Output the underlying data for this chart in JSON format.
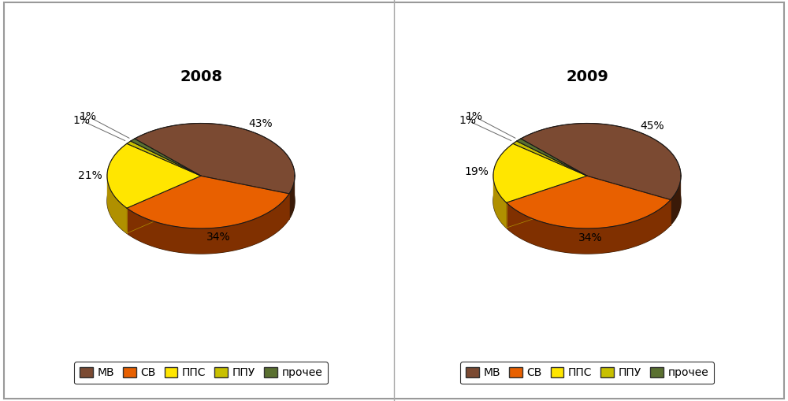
{
  "charts": [
    {
      "title": "2008",
      "values": [
        43,
        34,
        21,
        1,
        1
      ],
      "labels_pct": [
        "43%",
        "34%",
        "21%",
        "1%",
        "1%"
      ]
    },
    {
      "title": "2009",
      "values": [
        45,
        34,
        19,
        1,
        1
      ],
      "labels_pct": [
        "45%",
        "34%",
        "19%",
        "1%",
        "1%"
      ]
    }
  ],
  "categories": [
    "МВ",
    "СВ",
    "ППС",
    "ППУ",
    "прочее"
  ],
  "colors_top": [
    "#7B4A32",
    "#E86000",
    "#FFE600",
    "#C8C000",
    "#5A7030"
  ],
  "colors_side": [
    "#3A1A08",
    "#803000",
    "#B09000",
    "#787800",
    "#283818"
  ],
  "background": "#FFFFFF",
  "border_color": "#999999",
  "title_fontsize": 14,
  "label_fontsize": 10,
  "legend_fontsize": 10
}
